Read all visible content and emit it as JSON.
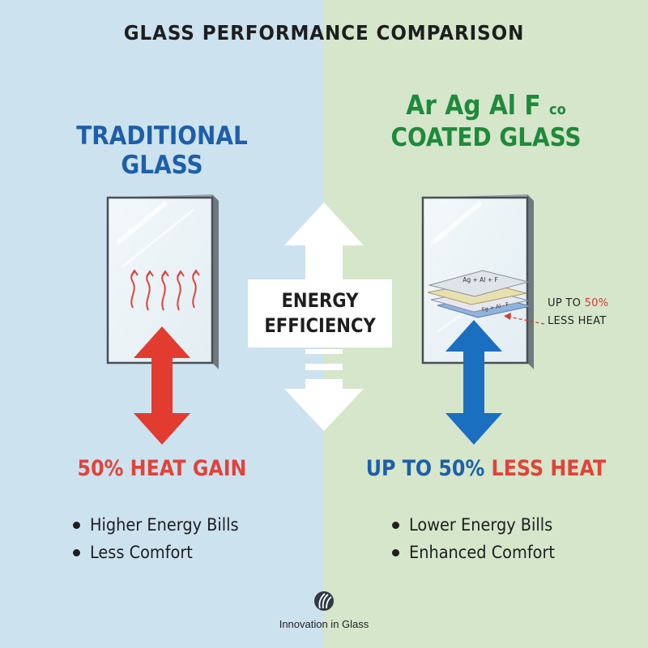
{
  "title": "GLASS PERFORMANCE COMPARISON",
  "left": {
    "heading": "TRADITIONAL GLASS",
    "stat": "50% HEAT GAIN",
    "bullets": [
      "Higher Energy Bills",
      "Less Comfort"
    ]
  },
  "right": {
    "heading_line1": "Ar Ag Al F",
    "heading_line1_small": "co",
    "heading_line2": "COATED GLASS",
    "stat_blue": "UP TO 50%",
    "stat_red": "LESS HEAT",
    "bullets": [
      "Lower Energy Bills",
      "Enhanced Comfort"
    ],
    "layer_top_label": "Ag + Al + F",
    "layer_bottom_label": "Fg + Al - F",
    "note_line1_prefix": "UP TO",
    "note_line1_value": "50%",
    "note_line2": "LESS HEAT"
  },
  "center": {
    "line1": "ENERGY",
    "line2": "EFFICIENCY"
  },
  "footer": {
    "brand_text": "Innovation in Glass"
  },
  "colors": {
    "left_bg": "#cde2ef",
    "right_bg": "#d5e6cb",
    "blue": "#1d5fa8",
    "green": "#1f8a3a",
    "red": "#e0433a",
    "arrow_blue": "#1b6fc0"
  }
}
